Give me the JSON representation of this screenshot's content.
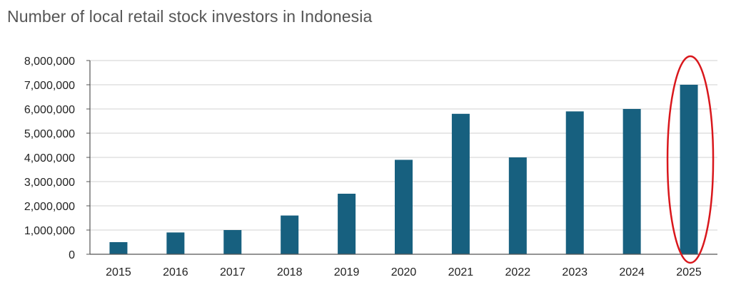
{
  "chart_data": {
    "type": "bar",
    "title": "Number of local retail stock investors in Indonesia",
    "xlabel": "",
    "ylabel": "",
    "categories": [
      "2015",
      "2016",
      "2017",
      "2018",
      "2019",
      "2020",
      "2021",
      "2022",
      "2023",
      "2024",
      "2025"
    ],
    "values": [
      500000,
      900000,
      1000000,
      1600000,
      2500000,
      3900000,
      5800000,
      4000000,
      5900000,
      6000000,
      7000000
    ],
    "ylim": [
      0,
      8000000
    ],
    "yticks": [
      0,
      1000000,
      2000000,
      3000000,
      4000000,
      5000000,
      6000000,
      7000000,
      8000000
    ],
    "ytick_labels": [
      "0",
      "1,000,000",
      "2,000,000",
      "3,000,000",
      "4,000,000",
      "5,000,000",
      "6,000,000",
      "7,000,000",
      "8,000,000"
    ],
    "grid": true,
    "bar_color": "#17607F",
    "highlight": {
      "category": "2025",
      "shape": "ellipse",
      "color": "#D9171C"
    }
  }
}
